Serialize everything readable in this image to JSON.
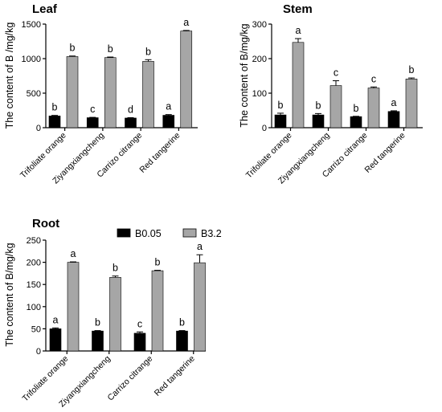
{
  "chart_data": [
    {
      "type": "bar",
      "title": "Leaf",
      "ylabel": "The content of B /mg/kg",
      "categories": [
        "Trifoliate orange",
        "Ziyangxiangcheng",
        "Carrizo citrange",
        "Red tangerine"
      ],
      "ylim": [
        0,
        1500
      ],
      "yticks": [
        0,
        500,
        1000,
        1500
      ],
      "series": [
        {
          "name": "B0.05",
          "color": "#000000",
          "values": [
            170,
            145,
            140,
            180
          ],
          "errors": [
            8,
            5,
            5,
            10
          ],
          "letters": [
            "b",
            "c",
            "d",
            "a"
          ]
        },
        {
          "name": "B3.2",
          "color": "#a6a6a6",
          "values": [
            1030,
            1015,
            960,
            1400
          ],
          "errors": [
            8,
            8,
            25,
            8
          ],
          "letters": [
            "b",
            "b",
            "b",
            "a"
          ]
        }
      ]
    },
    {
      "type": "bar",
      "title": "Stem",
      "ylabel": "The content of B/mg/kg",
      "categories": [
        "Trifoliate orange",
        "Ziyangxiangcheng",
        "Carrizo citrange",
        "Red tangerine"
      ],
      "ylim": [
        0,
        300
      ],
      "yticks": [
        0,
        100,
        200,
        300
      ],
      "series": [
        {
          "name": "B0.05",
          "color": "#000000",
          "values": [
            37,
            37,
            32,
            47
          ],
          "errors": [
            5,
            4,
            1,
            2
          ],
          "letters": [
            "b",
            "b",
            "b",
            "a"
          ]
        },
        {
          "name": "B3.2",
          "color": "#a6a6a6",
          "values": [
            247,
            122,
            115,
            141
          ],
          "errors": [
            11,
            14,
            3,
            3
          ],
          "letters": [
            "a",
            "c",
            "c",
            "b"
          ]
        }
      ]
    },
    {
      "type": "bar",
      "title": "Root",
      "ylabel": "The content of B/mg/kg",
      "categories": [
        "Trifoliate orange",
        "Ziyangxiangcheng",
        "Carrizo citrange",
        "Red tangerine"
      ],
      "ylim": [
        0,
        250
      ],
      "yticks": [
        0,
        50,
        100,
        150,
        200,
        250
      ],
      "legend": {
        "placement": "top",
        "entries": [
          "B0.05",
          "B3.2"
        ]
      },
      "series": [
        {
          "name": "B0.05",
          "color": "#000000",
          "values": [
            50,
            45,
            40,
            45
          ],
          "errors": [
            2,
            1,
            3,
            1
          ],
          "letters": [
            "a",
            "b",
            "c",
            "b"
          ]
        },
        {
          "name": "B3.2",
          "color": "#a6a6a6",
          "values": [
            200,
            166,
            181,
            199
          ],
          "errors": [
            1,
            3,
            1,
            18
          ],
          "letters": [
            "a",
            "b",
            "b",
            "a"
          ]
        }
      ]
    }
  ]
}
